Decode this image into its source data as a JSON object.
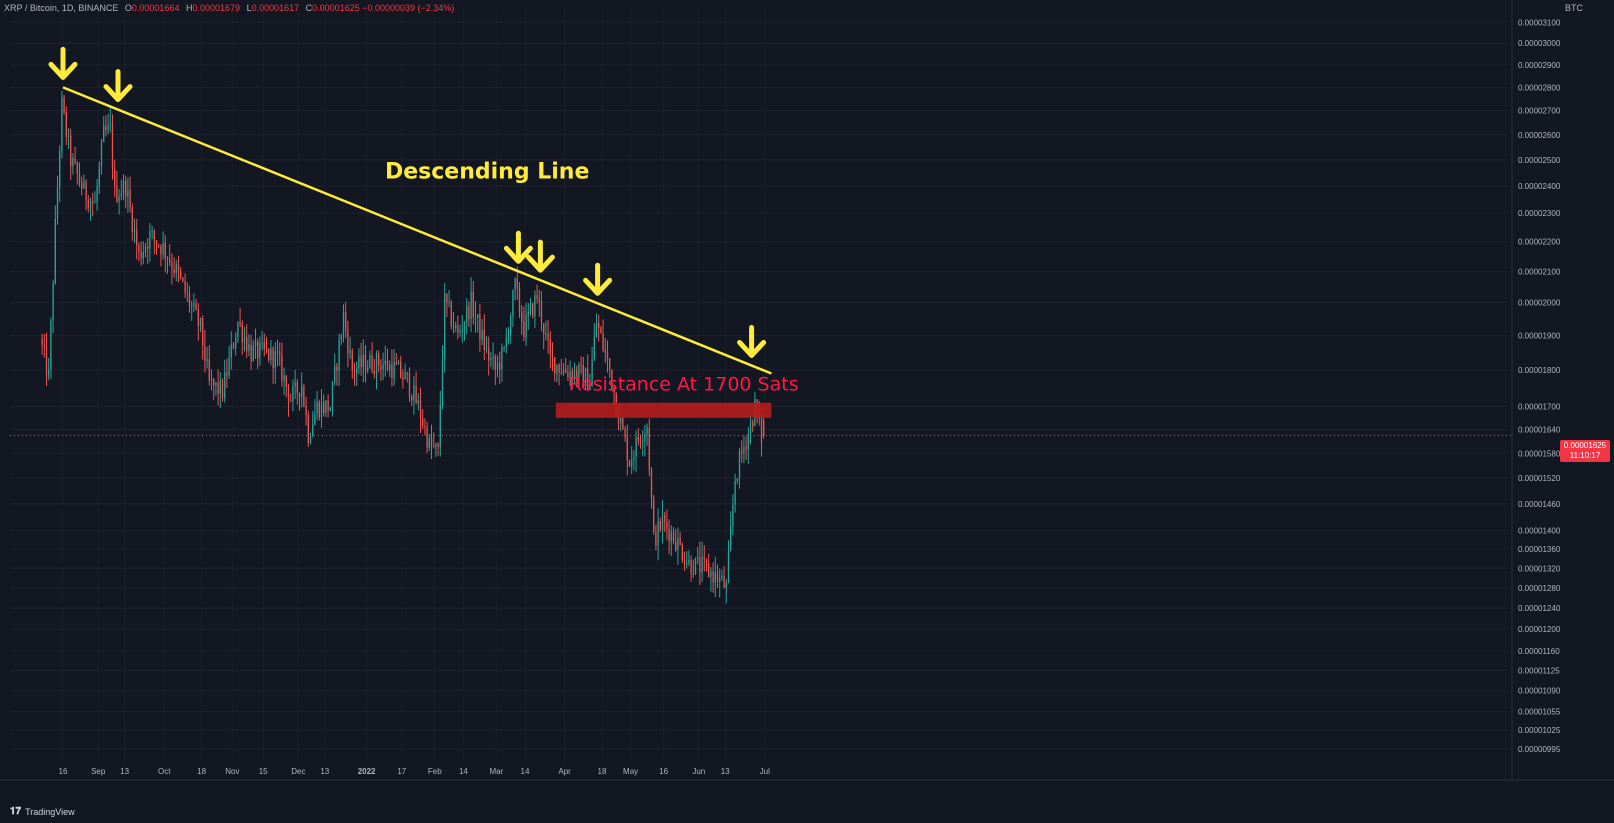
{
  "legend": {
    "symbol": "XRP / Bitcoin, 1D, BINANCE",
    "open_label": "O",
    "open": "0.00001664",
    "high_label": "H",
    "high": "0.00001679",
    "low_label": "L",
    "low": "0.00001617",
    "close_label": "C",
    "close": "0.00001625",
    "change": "−0.00000039 (−2.34%)"
  },
  "unit_label": "BTC",
  "last_price": {
    "value": "0.00001625",
    "countdown": "11:10:17"
  },
  "branding": {
    "text": "TradingView"
  },
  "colors": {
    "background": "#131722",
    "up": "#26a69a",
    "down": "#ef5350",
    "trendline": "#ffeb3b",
    "resistance": "#b71c1c",
    "resistance_text": "#ff1744",
    "axis_text": "#b2b5be"
  },
  "chart_data": {
    "type": "candlestick",
    "title": "",
    "xlabel": "",
    "ylabel": "BTC",
    "y_scale": "log",
    "ylim": [
      9.75e-06,
      3.17e-05
    ],
    "x_ticks": [
      "16",
      "Sep",
      "13",
      "Oct",
      "18",
      "Nov",
      "15",
      "Dec",
      "13",
      "2022",
      "17",
      "Feb",
      "14",
      "Mar",
      "14",
      "Apr",
      "18",
      "May",
      "16",
      "Jun",
      "13",
      "Jul"
    ],
    "y_ticks": [
      "0.00003100",
      "0.00003000",
      "0.00002900",
      "0.00002800",
      "0.00002700",
      "0.00002600",
      "0.00002500",
      "0.00002400",
      "0.00002300",
      "0.00002200",
      "0.00002100",
      "0.00002000",
      "0.00001900",
      "0.00001800",
      "0.00001700",
      "0.00001640",
      "0.00001580",
      "0.00001520",
      "0.00001460",
      "0.00001400",
      "0.00001360",
      "0.00001320",
      "0.00001280",
      "0.00001240",
      "0.00001200",
      "0.00001160",
      "0.00001125",
      "0.00001090",
      "0.00001055",
      "0.00001025",
      "0.00000995"
    ],
    "series": [
      {
        "key_points": [
          [
            "2021-08-06",
            1.89e-05
          ],
          [
            "2021-08-10",
            1.78e-05
          ],
          [
            "2021-08-13",
            2.25e-05
          ],
          [
            "2021-08-16",
            2.72e-05
          ],
          [
            "2021-08-20",
            2.5e-05
          ],
          [
            "2021-08-26",
            2.38e-05
          ],
          [
            "2021-08-31",
            2.33e-05
          ],
          [
            "2021-09-04",
            2.6e-05
          ],
          [
            "2021-09-07",
            2.62e-05
          ],
          [
            "2021-09-09",
            2.37e-05
          ],
          [
            "2021-09-14",
            2.4e-05
          ],
          [
            "2021-09-20",
            2.15e-05
          ],
          [
            "2021-09-25",
            2.22e-05
          ],
          [
            "2021-10-01",
            2.18e-05
          ],
          [
            "2021-10-07",
            2.1e-05
          ],
          [
            "2021-10-10",
            2.05e-05
          ],
          [
            "2021-10-13",
            2e-05
          ],
          [
            "2021-10-18",
            1.92e-05
          ],
          [
            "2021-10-22",
            1.76e-05
          ],
          [
            "2021-10-28",
            1.74e-05
          ],
          [
            "2021-11-04",
            1.94e-05
          ],
          [
            "2021-11-10",
            1.85e-05
          ],
          [
            "2021-11-16",
            1.85e-05
          ],
          [
            "2021-11-22",
            1.83e-05
          ],
          [
            "2021-11-28",
            1.72e-05
          ],
          [
            "2021-12-03",
            1.76e-05
          ],
          [
            "2021-12-06",
            1.63e-05
          ],
          [
            "2021-12-10",
            1.7e-05
          ],
          [
            "2021-12-16",
            1.7e-05
          ],
          [
            "2021-12-22",
            1.96e-05
          ],
          [
            "2021-12-26",
            1.8e-05
          ],
          [
            "2022-01-01",
            1.82e-05
          ],
          [
            "2022-01-08",
            1.82e-05
          ],
          [
            "2022-01-15",
            1.8e-05
          ],
          [
            "2022-01-20",
            1.77e-05
          ],
          [
            "2022-01-25",
            1.7e-05
          ],
          [
            "2022-01-30",
            1.6e-05
          ],
          [
            "2022-02-03",
            1.58e-05
          ],
          [
            "2022-02-06",
            2e-05
          ],
          [
            "2022-02-12",
            1.9e-05
          ],
          [
            "2022-02-18",
            2e-05
          ],
          [
            "2022-02-25",
            1.85e-05
          ],
          [
            "2022-03-01",
            1.8e-05
          ],
          [
            "2022-03-05",
            1.85e-05
          ],
          [
            "2022-03-10",
            2.05e-05
          ],
          [
            "2022-03-14",
            1.92e-05
          ],
          [
            "2022-03-20",
            2.02e-05
          ],
          [
            "2022-03-26",
            1.83e-05
          ],
          [
            "2022-04-01",
            1.8e-05
          ],
          [
            "2022-04-08",
            1.79e-05
          ],
          [
            "2022-04-13",
            1.77e-05
          ],
          [
            "2022-04-16",
            1.94e-05
          ],
          [
            "2022-04-22",
            1.8e-05
          ],
          [
            "2022-04-26",
            1.68e-05
          ],
          [
            "2022-05-01",
            1.56e-05
          ],
          [
            "2022-05-06",
            1.63e-05
          ],
          [
            "2022-05-09",
            1.65e-05
          ],
          [
            "2022-05-12",
            1.38e-05
          ],
          [
            "2022-05-16",
            1.42e-05
          ],
          [
            "2022-05-22",
            1.38e-05
          ],
          [
            "2022-05-28",
            1.33e-05
          ],
          [
            "2022-06-04",
            1.32e-05
          ],
          [
            "2022-06-10",
            1.3e-05
          ],
          [
            "2022-06-14",
            1.28e-05
          ],
          [
            "2022-06-18",
            1.52e-05
          ],
          [
            "2022-06-21",
            1.58e-05
          ],
          [
            "2022-06-25",
            1.65e-05
          ],
          [
            "2022-06-27",
            1.7e-05
          ],
          [
            "2022-06-30",
            1.62e-05
          ]
        ],
        "last": {
          "date": "2022-06-30",
          "open": 1.664e-05,
          "high": 1.679e-05,
          "low": 1.617e-05,
          "close": 1.625e-05
        }
      }
    ],
    "annotations": {
      "trendline": {
        "label": "Descending Line",
        "from": [
          "2021-08-16",
          2.8e-05
        ],
        "to": [
          "2022-07-04",
          1.79e-05
        ]
      },
      "resistance": {
        "label": "Resistance At 1700 Sats",
        "from_date": "2022-03-28",
        "to_date": "2022-07-04",
        "low": 1.67e-05,
        "high": 1.71e-05
      },
      "arrows": [
        "2021-08-16",
        "2021-09-10",
        "2022-03-11",
        "2022-03-21",
        "2022-04-16",
        "2022-06-25"
      ]
    }
  }
}
